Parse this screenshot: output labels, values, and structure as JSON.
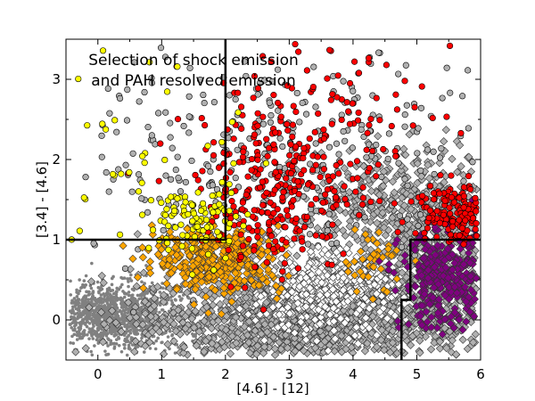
{
  "chart_data": {
    "type": "scatter",
    "title": "",
    "annotation": [
      "Selection of shock emission",
      "and PAH resolved emission"
    ],
    "xlabel": "[4.6] - [12]",
    "ylabel": "[3.4] - [4.6]",
    "xlim": [
      -0.5,
      6
    ],
    "ylim": [
      -0.5,
      3.5
    ],
    "xticks": [
      0,
      1,
      2,
      3,
      4,
      5,
      6
    ],
    "yticks": [
      0,
      1,
      2,
      3
    ],
    "grid": false,
    "legend": "none",
    "selection_boundaries": [
      {
        "name": "shock-region-boundary",
        "points": [
          [
            -0.5,
            1
          ],
          [
            2,
            1
          ],
          [
            2,
            3.5
          ]
        ]
      },
      {
        "name": "pah-region-boundary",
        "points": [
          [
            6,
            1
          ],
          [
            4.9,
            1
          ],
          [
            4.9,
            0.25
          ],
          [
            4.76,
            0.25
          ],
          [
            4.76,
            -0.5
          ]
        ]
      }
    ],
    "series": [
      {
        "name": "all sources (dots)",
        "color": "#808080",
        "marker": "dot",
        "clusters": [
          {
            "cx": 0.1,
            "cy": 0.05,
            "sx": 0.45,
            "sy": 0.2,
            "n": 900
          },
          {
            "cx": 0.9,
            "cy": 0.0,
            "sx": 0.35,
            "sy": 0.25,
            "n": 300
          }
        ]
      },
      {
        "name": "sources (gray)",
        "color": "#b0b0b0",
        "marker": "diamond",
        "clusters": [
          {
            "cx": 3.0,
            "cy": 0.0,
            "sx": 1.2,
            "sy": 0.3,
            "n": 1100
          },
          {
            "cx": 5.2,
            "cy": 0.3,
            "sx": 0.6,
            "sy": 0.5,
            "n": 400
          },
          {
            "cx": 4.8,
            "cy": 1.4,
            "sx": 0.8,
            "sy": 0.35,
            "n": 450
          }
        ]
      },
      {
        "name": "sources (gray, sparse)",
        "color": "#b0b0b0",
        "marker": "circle",
        "clusters": [
          {
            "cx": 3.5,
            "cy": 2.0,
            "sx": 1.3,
            "sy": 0.6,
            "n": 260
          },
          {
            "cx": 1.0,
            "cy": 2.0,
            "sx": 0.7,
            "sy": 0.7,
            "n": 70
          }
        ]
      },
      {
        "name": "intermediate (white)",
        "color": "#ffffff",
        "marker": "diamond",
        "clusters": [
          {
            "cx": 3.5,
            "cy": 0.35,
            "sx": 0.55,
            "sy": 0.25,
            "n": 420
          }
        ]
      },
      {
        "name": "intermediate (orange)",
        "color": "#ffa500",
        "marker": "diamond",
        "clusters": [
          {
            "cx": 1.9,
            "cy": 0.75,
            "sx": 0.5,
            "sy": 0.2,
            "n": 380
          },
          {
            "cx": 4.3,
            "cy": 0.75,
            "sx": 0.25,
            "sy": 0.2,
            "n": 40
          }
        ]
      },
      {
        "name": "PAH resolved emission",
        "color": "#800080",
        "marker": "diamond",
        "clusters": [
          {
            "cx": 5.45,
            "cy": 0.5,
            "sx": 0.35,
            "sy": 0.3,
            "n": 320
          }
        ]
      },
      {
        "name": "shock emission (red)",
        "color": "#ff0000",
        "marker": "circle",
        "clusters": [
          {
            "cx": 2.8,
            "cy": 1.6,
            "sx": 0.6,
            "sy": 0.5,
            "n": 260
          },
          {
            "cx": 3.6,
            "cy": 2.4,
            "sx": 1.0,
            "sy": 0.6,
            "n": 110
          },
          {
            "cx": 5.6,
            "cy": 1.35,
            "sx": 0.35,
            "sy": 0.2,
            "n": 130
          }
        ]
      },
      {
        "name": "shock emission (yellow)",
        "color": "#ffff00",
        "marker": "circle",
        "clusters": [
          {
            "cx": 1.6,
            "cy": 1.25,
            "sx": 0.35,
            "sy": 0.25,
            "n": 90
          },
          {
            "cx": 0.6,
            "cy": 1.8,
            "sx": 0.8,
            "sy": 0.6,
            "n": 35
          }
        ]
      }
    ]
  }
}
